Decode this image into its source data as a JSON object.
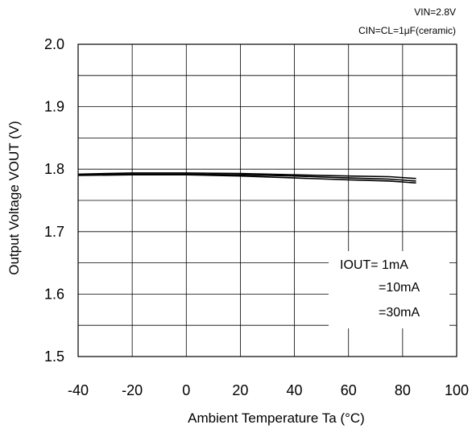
{
  "chart_data": {
    "type": "line",
    "title": "",
    "conditions": [
      "VIN=2.8V",
      "CIN=CL=1μF(ceramic)"
    ],
    "xlabel": "Ambient Temperature Ta (°C)",
    "ylabel": "Output Voltage VOUT (V)",
    "xlim": [
      -40,
      100
    ],
    "ylim": [
      1.5,
      2.0
    ],
    "xticks": [
      "-40",
      "-20",
      "0",
      "20",
      "40",
      "60",
      "80",
      "100"
    ],
    "yticks": [
      "1.5",
      "1.6",
      "1.7",
      "1.8",
      "1.9",
      "2.0"
    ],
    "grid": true,
    "legend_position": "bottom-right",
    "legend_labels": [
      "IOUT= 1mA",
      "=10mA",
      "=30mA"
    ],
    "series": [
      {
        "name": "IOUT= 1mA",
        "x": [
          -40,
          -20,
          0,
          20,
          40,
          60,
          75,
          85
        ],
        "y": [
          1.792,
          1.794,
          1.794,
          1.793,
          1.791,
          1.789,
          1.788,
          1.785
        ]
      },
      {
        "name": "=10mA",
        "x": [
          -40,
          -20,
          0,
          20,
          40,
          60,
          75,
          85
        ],
        "y": [
          1.791,
          1.792,
          1.792,
          1.791,
          1.789,
          1.786,
          1.784,
          1.781
        ]
      },
      {
        "name": "=30mA",
        "x": [
          -40,
          -20,
          0,
          20,
          40,
          60,
          75,
          85
        ],
        "y": [
          1.79,
          1.791,
          1.791,
          1.789,
          1.786,
          1.783,
          1.781,
          1.778
        ]
      }
    ]
  }
}
